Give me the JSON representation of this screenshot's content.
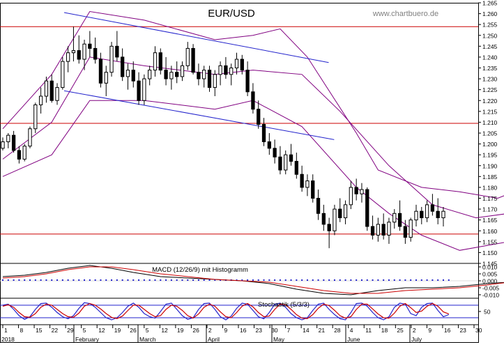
{
  "chart_data": {
    "type": "candlestick",
    "title": "EUR/USD",
    "watermark": "www.chartbuero.de",
    "colors": {
      "candle": "#000000",
      "bollinger": "#800080",
      "trendline": "#2222cc",
      "horizontal": "#cc0000",
      "macd": "#000000",
      "signal": "#cc0000",
      "histogram": "#2222cc",
      "stoch_k": "#2222cc",
      "stoch_d": "#cc0000"
    },
    "price_axis": {
      "min": 1.145,
      "max": 1.265,
      "ticks": [
        "1.145",
        "1.150",
        "1.155",
        "1.160",
        "1.165",
        "1.170",
        "1.175",
        "1.180",
        "1.185",
        "1.190",
        "1.195",
        "1.200",
        "1.205",
        "1.210",
        "1.215",
        "1.220",
        "1.225",
        "1.230",
        "1.235",
        "1.240",
        "1.245",
        "1.250",
        "1.255",
        "1.260",
        "1.265"
      ]
    },
    "horizontal_lines": [
      1.254,
      1.2095,
      1.1585
    ],
    "trend_lines": [
      {
        "start": [
          1,
          1.2605
        ],
        "end": [
          54,
          1.2375
        ]
      },
      {
        "start": [
          1,
          1.2245
        ],
        "end": [
          55,
          1.202
        ]
      }
    ],
    "candles": [
      [
        1.198,
        1.203,
        1.197,
        1.201
      ],
      [
        1.201,
        1.205,
        1.198,
        1.204
      ],
      [
        1.204,
        1.206,
        1.196,
        1.197
      ],
      [
        1.197,
        1.199,
        1.191,
        1.193
      ],
      [
        1.193,
        1.2,
        1.192,
        1.199
      ],
      [
        1.199,
        1.208,
        1.198,
        1.207
      ],
      [
        1.207,
        1.219,
        1.205,
        1.218
      ],
      [
        1.218,
        1.226,
        1.214,
        1.222
      ],
      [
        1.222,
        1.231,
        1.219,
        1.229
      ],
      [
        1.229,
        1.232,
        1.219,
        1.22
      ],
      [
        1.22,
        1.228,
        1.218,
        1.226
      ],
      [
        1.226,
        1.24,
        1.225,
        1.238
      ],
      [
        1.238,
        1.245,
        1.233,
        1.242
      ],
      [
        1.242,
        1.254,
        1.238,
        1.243
      ],
      [
        1.243,
        1.25,
        1.237,
        1.239
      ],
      [
        1.239,
        1.248,
        1.234,
        1.246
      ],
      [
        1.246,
        1.252,
        1.24,
        1.244
      ],
      [
        1.244,
        1.249,
        1.237,
        1.239
      ],
      [
        1.239,
        1.242,
        1.226,
        1.228
      ],
      [
        1.228,
        1.236,
        1.222,
        1.233
      ],
      [
        1.233,
        1.247,
        1.231,
        1.245
      ],
      [
        1.245,
        1.252,
        1.238,
        1.24
      ],
      [
        1.24,
        1.244,
        1.229,
        1.231
      ],
      [
        1.231,
        1.237,
        1.225,
        1.234
      ],
      [
        1.234,
        1.238,
        1.226,
        1.229
      ],
      [
        1.229,
        1.233,
        1.218,
        1.22
      ],
      [
        1.22,
        1.232,
        1.218,
        1.23
      ],
      [
        1.23,
        1.236,
        1.227,
        1.234
      ],
      [
        1.234,
        1.245,
        1.231,
        1.242
      ],
      [
        1.242,
        1.244,
        1.232,
        1.234
      ],
      [
        1.234,
        1.24,
        1.227,
        1.23
      ],
      [
        1.23,
        1.236,
        1.225,
        1.233
      ],
      [
        1.233,
        1.238,
        1.228,
        1.231
      ],
      [
        1.231,
        1.238,
        1.229,
        1.236
      ],
      [
        1.236,
        1.247,
        1.234,
        1.244
      ],
      [
        1.244,
        1.246,
        1.232,
        1.233
      ],
      [
        1.233,
        1.237,
        1.227,
        1.23
      ],
      [
        1.23,
        1.236,
        1.226,
        1.234
      ],
      [
        1.234,
        1.236,
        1.224,
        1.226
      ],
      [
        1.226,
        1.234,
        1.222,
        1.232
      ],
      [
        1.232,
        1.238,
        1.227,
        1.236
      ],
      [
        1.236,
        1.24,
        1.23,
        1.232
      ],
      [
        1.232,
        1.237,
        1.227,
        1.235
      ],
      [
        1.235,
        1.242,
        1.232,
        1.239
      ],
      [
        1.239,
        1.241,
        1.232,
        1.234
      ],
      [
        1.234,
        1.238,
        1.222,
        1.224
      ],
      [
        1.224,
        1.228,
        1.214,
        1.216
      ],
      [
        1.216,
        1.22,
        1.207,
        1.209
      ],
      [
        1.209,
        1.212,
        1.199,
        1.201
      ],
      [
        1.201,
        1.205,
        1.195,
        1.198
      ],
      [
        1.198,
        1.202,
        1.191,
        1.194
      ],
      [
        1.194,
        1.199,
        1.186,
        1.188
      ],
      [
        1.188,
        1.197,
        1.186,
        1.195
      ],
      [
        1.195,
        1.2,
        1.19,
        1.192
      ],
      [
        1.192,
        1.196,
        1.184,
        1.186
      ],
      [
        1.186,
        1.19,
        1.178,
        1.18
      ],
      [
        1.18,
        1.186,
        1.176,
        1.183
      ],
      [
        1.183,
        1.186,
        1.173,
        1.175
      ],
      [
        1.175,
        1.179,
        1.165,
        1.168
      ],
      [
        1.168,
        1.172,
        1.16,
        1.163
      ],
      [
        1.163,
        1.166,
        1.152,
        1.16
      ],
      [
        1.16,
        1.172,
        1.158,
        1.17
      ],
      [
        1.17,
        1.175,
        1.164,
        1.166
      ],
      [
        1.166,
        1.174,
        1.163,
        1.172
      ],
      [
        1.172,
        1.183,
        1.17,
        1.18
      ],
      [
        1.18,
        1.184,
        1.174,
        1.177
      ],
      [
        1.177,
        1.182,
        1.173,
        1.179
      ],
      [
        1.179,
        1.18,
        1.16,
        1.162
      ],
      [
        1.162,
        1.167,
        1.156,
        1.158
      ],
      [
        1.158,
        1.166,
        1.155,
        1.163
      ],
      [
        1.163,
        1.168,
        1.156,
        1.158
      ],
      [
        1.158,
        1.166,
        1.154,
        1.164
      ],
      [
        1.164,
        1.17,
        1.161,
        1.168
      ],
      [
        1.168,
        1.174,
        1.16,
        1.162
      ],
      [
        1.162,
        1.165,
        1.154,
        1.157
      ],
      [
        1.157,
        1.166,
        1.155,
        1.165
      ],
      [
        1.165,
        1.172,
        1.162,
        1.169
      ],
      [
        1.169,
        1.171,
        1.163,
        1.166
      ],
      [
        1.166,
        1.174,
        1.164,
        1.172
      ],
      [
        1.172,
        1.177,
        1.167,
        1.169
      ],
      [
        1.169,
        1.175,
        1.163,
        1.166
      ],
      [
        1.166,
        1.171,
        1.162,
        1.169
      ]
    ],
    "bollinger": {
      "upper": [
        [
          1,
          1.207
        ],
        [
          10,
          1.232
        ],
        [
          17,
          1.261
        ],
        [
          27,
          1.257
        ],
        [
          40,
          1.248
        ],
        [
          47,
          1.25
        ],
        [
          52,
          1.253
        ],
        [
          57,
          1.24
        ],
        [
          66,
          1.205
        ],
        [
          70,
          1.188
        ],
        [
          78,
          1.18
        ],
        [
          85,
          1.178
        ],
        [
          92,
          1.175
        ],
        [
          94,
          1.177
        ]
      ],
      "middle": [
        [
          1,
          1.193
        ],
        [
          10,
          1.21
        ],
        [
          17,
          1.24
        ],
        [
          27,
          1.236
        ],
        [
          40,
          1.232
        ],
        [
          47,
          1.234
        ],
        [
          56,
          1.232
        ],
        [
          63,
          1.215
        ],
        [
          72,
          1.19
        ],
        [
          80,
          1.172
        ],
        [
          88,
          1.166
        ],
        [
          94,
          1.168
        ]
      ],
      "lower": [
        [
          1,
          1.185
        ],
        [
          10,
          1.195
        ],
        [
          17,
          1.22
        ],
        [
          27,
          1.22
        ],
        [
          40,
          1.216
        ],
        [
          47,
          1.22
        ],
        [
          56,
          1.208
        ],
        [
          66,
          1.18
        ],
        [
          72,
          1.168
        ],
        [
          78,
          1.158
        ],
        [
          85,
          1.151
        ],
        [
          94,
          1.155
        ]
      ]
    },
    "macd_panel": {
      "label": "MACD (12/26/9) mit Histogramm",
      "axis": {
        "min": -0.0125,
        "max": 0.0125,
        "ticks": [
          "0.010",
          "0.005",
          "0.000",
          "-0.005",
          "-0.010"
        ]
      },
      "macd": [
        [
          1,
          0.003
        ],
        [
          5,
          0.004
        ],
        [
          9,
          0.006
        ],
        [
          13,
          0.009
        ],
        [
          17,
          0.011
        ],
        [
          21,
          0.009
        ],
        [
          25,
          0.006
        ],
        [
          30,
          0.003
        ],
        [
          35,
          0.002
        ],
        [
          40,
          0.001
        ],
        [
          45,
          0.0
        ],
        [
          50,
          -0.002
        ],
        [
          55,
          -0.006
        ],
        [
          60,
          -0.009
        ],
        [
          65,
          -0.01
        ],
        [
          70,
          -0.007
        ],
        [
          75,
          -0.005
        ],
        [
          80,
          -0.005
        ],
        [
          85,
          -0.004
        ],
        [
          90,
          -0.002
        ],
        [
          94,
          -0.001
        ]
      ],
      "signal": [
        [
          1,
          0.002
        ],
        [
          5,
          0.003
        ],
        [
          9,
          0.005
        ],
        [
          13,
          0.008
        ],
        [
          17,
          0.01
        ],
        [
          21,
          0.01
        ],
        [
          25,
          0.008
        ],
        [
          30,
          0.005
        ],
        [
          35,
          0.003
        ],
        [
          40,
          0.001
        ],
        [
          45,
          0.0
        ],
        [
          50,
          -0.001
        ],
        [
          55,
          -0.004
        ],
        [
          60,
          -0.007
        ],
        [
          65,
          -0.009
        ],
        [
          70,
          -0.009
        ],
        [
          75,
          -0.007
        ],
        [
          80,
          -0.006
        ],
        [
          85,
          -0.005
        ],
        [
          90,
          -0.003
        ],
        [
          94,
          -0.001
        ]
      ],
      "histogram": [
        0.001,
        0.001,
        0.001,
        0.001,
        0.001,
        0.001,
        0.001,
        0.001,
        0.001,
        0.001,
        0.001,
        0.001,
        0.001,
        0.001,
        0.001,
        0.001,
        0.001,
        0.001,
        0.001,
        0.001,
        0.001,
        0.001,
        0.001,
        0.001,
        0.001,
        0.001,
        0.001,
        0.001,
        0.001,
        0.001,
        0.001,
        0.001,
        0.001,
        0.001,
        0.001,
        0.001,
        0.001,
        0.001,
        0.001,
        0.001,
        0.001,
        0.001,
        0.001,
        0.001,
        0.001,
        0.001,
        0.001,
        0.001,
        0.001,
        0.001,
        0.001,
        0.001,
        0.001,
        0.001,
        0.001,
        0.001,
        0.001,
        0.001,
        0.001,
        0.001,
        0.001,
        0.001,
        0.001,
        0.001,
        0.001,
        0.001,
        0.001,
        0.001,
        0.001,
        0.001,
        0.001,
        0.001,
        0.001,
        0.001,
        0.001,
        0.001,
        0.001,
        0.001,
        0.001,
        0.001,
        0.001,
        0.001,
        0.001
      ]
    },
    "stoch_panel": {
      "label": "Stochastik (5/3/3)",
      "axis": {
        "min": 0,
        "max": 100,
        "ticks": [
          "50"
        ]
      },
      "levels": [
        80,
        20
      ],
      "k": [
        80,
        85,
        60,
        30,
        12,
        25,
        60,
        88,
        90,
        70,
        45,
        25,
        15,
        30,
        65,
        92,
        88,
        70,
        45,
        20,
        10,
        20,
        45,
        75,
        90,
        70,
        40,
        25,
        18,
        50,
        85,
        90,
        60,
        30,
        12,
        20,
        60,
        88,
        90,
        60,
        25,
        10,
        28,
        65,
        90,
        85,
        55,
        25,
        15,
        45,
        85,
        90,
        70,
        40,
        20,
        10,
        20,
        55,
        85,
        90,
        60,
        35,
        15,
        10,
        45,
        88,
        90,
        75,
        45,
        20,
        10,
        25,
        70,
        90,
        85,
        40,
        30,
        70,
        88,
        90,
        55,
        25,
        35
      ],
      "d": [
        75,
        82,
        70,
        45,
        25,
        22,
        40,
        70,
        85,
        80,
        60,
        40,
        25,
        22,
        42,
        75,
        88,
        80,
        62,
        40,
        22,
        16,
        28,
        55,
        80,
        80,
        60,
        40,
        25,
        30,
        60,
        80,
        75,
        55,
        30,
        18,
        38,
        70,
        85,
        75,
        48,
        25,
        20,
        45,
        75,
        88,
        72,
        45,
        25,
        28,
        60,
        85,
        82,
        60,
        35,
        18,
        16,
        35,
        65,
        85,
        78,
        55,
        30,
        18,
        25,
        60,
        85,
        85,
        62,
        38,
        20,
        18,
        42,
        75,
        88,
        68,
        45,
        52,
        75,
        88,
        75,
        48,
        38
      ]
    },
    "x_axis": {
      "tick_labels": [
        "1",
        "8",
        "15",
        "22",
        "29",
        "5",
        "12",
        "19",
        "26",
        "5",
        "12",
        "19",
        "26",
        "2",
        "9",
        "16",
        "23",
        "30",
        "7",
        "14",
        "21",
        "28",
        "4",
        "11",
        "18",
        "25",
        "2",
        "9",
        "16",
        "23",
        "30"
      ],
      "month_labels": [
        "2018",
        "February",
        "March",
        "April",
        "May",
        "June",
        "July"
      ]
    }
  }
}
